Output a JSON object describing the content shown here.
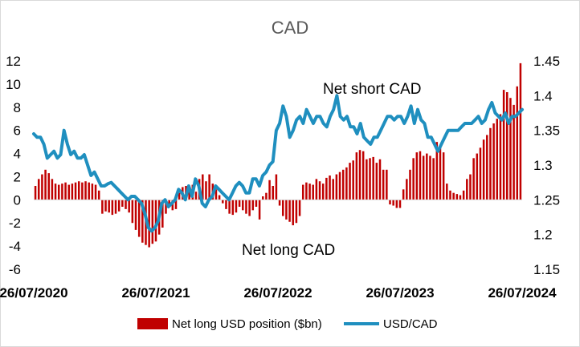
{
  "chart_data": {
    "type": "bar+line",
    "title": "CAD",
    "x_start": "26/07/2020",
    "x_end": "26/07/2024",
    "x_ticks": [
      "26/07/2020",
      "26/07/2021",
      "26/07/2022",
      "26/07/2023",
      "26/07/2024"
    ],
    "y_left_ticks": [
      "12",
      "10",
      "8",
      "6",
      "4",
      "2",
      "0",
      "-2",
      "-4",
      "-6"
    ],
    "y_left_range": [
      -6,
      12
    ],
    "y_right_ticks": [
      "1.45",
      "1.4",
      "1.35",
      "1.3",
      "1.25",
      "1.2",
      "1.15"
    ],
    "y_right_range": [
      1.15,
      1.45
    ],
    "annotations": [
      "Net short CAD",
      "Net long CAD"
    ],
    "legend": [
      "Net long USD position ($bn)",
      "USD/CAD"
    ],
    "colors": {
      "bars": "#C00000",
      "line": "#1F8FBF",
      "title": "#595959"
    },
    "series": [
      {
        "name": "Net long USD position ($bn)",
        "kind": "bar",
        "values": [
          1.2,
          1.8,
          2.2,
          2.6,
          2.3,
          1.8,
          1.4,
          1.3,
          1.4,
          1.5,
          1.3,
          1.4,
          1.5,
          1.6,
          1.5,
          1.6,
          1.5,
          1.4,
          1.3,
          0.8,
          -1.2,
          -1.0,
          -1.1,
          -1.3,
          -1.2,
          -1.0,
          -0.6,
          -0.8,
          -1.1,
          -2.0,
          -2.6,
          -3.2,
          -3.7,
          -3.9,
          -4.1,
          -3.8,
          -3.6,
          -3.0,
          -2.4,
          -1.2,
          -0.6,
          -0.9,
          -0.8,
          0.6,
          1.1,
          1.2,
          0.8,
          1.3,
          0.7,
          1.8,
          2.2,
          1.6,
          2.2,
          1.4,
          0.9,
          0.4,
          -0.3,
          -0.8,
          -1.2,
          -1.3,
          -1.1,
          -0.6,
          -0.9,
          -1.2,
          -1.4,
          -0.9,
          -0.6,
          -1.7,
          0.3,
          0.6,
          1.7,
          1.2,
          2.2,
          -0.5,
          -1.4,
          -1.7,
          -1.9,
          -2.2,
          -2.0,
          -1.4,
          1.3,
          1.5,
          1.4,
          1.3,
          1.8,
          1.6,
          1.4,
          1.9,
          2.1,
          1.8,
          2.2,
          2.4,
          2.6,
          2.8,
          3.2,
          3.4,
          4.1,
          4.3,
          4.2,
          3.5,
          3.6,
          3.7,
          3.2,
          3.5,
          2.6,
          2.6,
          -0.4,
          -0.5,
          -0.7,
          -0.7,
          0.9,
          1.8,
          2.6,
          3.6,
          4.1,
          4.2,
          3.8,
          4.0,
          3.8,
          3.6,
          5.0,
          4.6,
          4.1,
          1.4,
          0.8,
          0.6,
          0.5,
          0.4,
          0.8,
          1.8,
          2.2,
          3.6,
          4.0,
          4.5,
          5.2,
          5.6,
          6.2,
          6.6,
          7.0,
          7.4,
          9.5,
          9.3,
          8.8,
          8.2,
          9.8,
          11.8
        ]
      },
      {
        "name": "USD/CAD",
        "kind": "line",
        "values": [
          1.345,
          1.34,
          1.34,
          1.33,
          1.31,
          1.315,
          1.32,
          1.31,
          1.315,
          1.35,
          1.33,
          1.315,
          1.32,
          1.31,
          1.31,
          1.315,
          1.3,
          1.285,
          1.29,
          1.28,
          1.27,
          1.27,
          1.273,
          1.275,
          1.27,
          1.265,
          1.26,
          1.255,
          1.25,
          1.255,
          1.255,
          1.25,
          1.245,
          1.23,
          1.21,
          1.205,
          1.21,
          1.22,
          1.245,
          1.25,
          1.24,
          1.245,
          1.25,
          1.265,
          1.26,
          1.25,
          1.27,
          1.255,
          1.28,
          1.27,
          1.245,
          1.24,
          1.25,
          1.255,
          1.27,
          1.265,
          1.26,
          1.255,
          1.25,
          1.26,
          1.27,
          1.275,
          1.27,
          1.26,
          1.26,
          1.28,
          1.28,
          1.27,
          1.285,
          1.29,
          1.3,
          1.305,
          1.35,
          1.36,
          1.385,
          1.37,
          1.34,
          1.35,
          1.365,
          1.37,
          1.36,
          1.38,
          1.37,
          1.36,
          1.37,
          1.37,
          1.36,
          1.355,
          1.37,
          1.38,
          1.4,
          1.37,
          1.365,
          1.37,
          1.355,
          1.355,
          1.345,
          1.36,
          1.34,
          1.335,
          1.33,
          1.34,
          1.34,
          1.35,
          1.36,
          1.37,
          1.37,
          1.365,
          1.37,
          1.37,
          1.36,
          1.37,
          1.385,
          1.36,
          1.38,
          1.365,
          1.36,
          1.34,
          1.34,
          1.33,
          1.32,
          1.33,
          1.34,
          1.35,
          1.35,
          1.35,
          1.35,
          1.355,
          1.36,
          1.36,
          1.36,
          1.365,
          1.37,
          1.36,
          1.365,
          1.38,
          1.39,
          1.375,
          1.37,
          1.365,
          1.375,
          1.36,
          1.37,
          1.37,
          1.375,
          1.38
        ]
      }
    ]
  }
}
